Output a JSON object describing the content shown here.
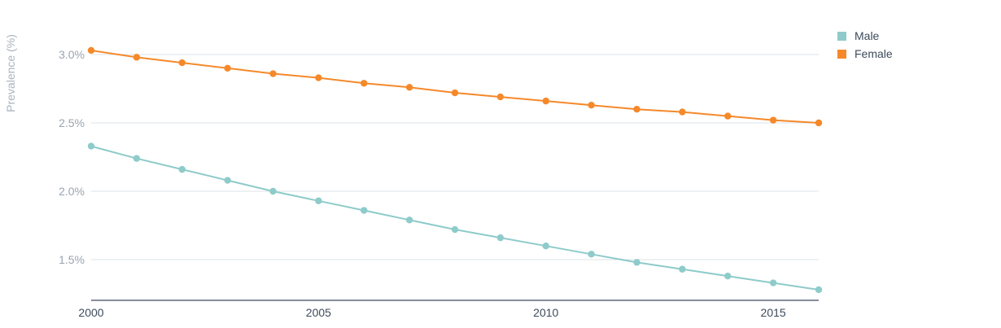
{
  "chart_data": {
    "type": "line",
    "ylabel": "Prevalence (%)",
    "xlabel": "",
    "x": [
      2000,
      2001,
      2002,
      2003,
      2004,
      2005,
      2006,
      2007,
      2008,
      2009,
      2010,
      2011,
      2012,
      2013,
      2014,
      2015,
      2016
    ],
    "xticks": [
      2000,
      2005,
      2010,
      2015
    ],
    "xtick_labels": [
      "2000",
      "2005",
      "2010",
      "2015"
    ],
    "yticks": [
      1.5,
      2.0,
      2.5,
      3.0
    ],
    "ytick_labels": [
      "1.5%",
      "2.0%",
      "2.5%",
      "3.0%"
    ],
    "xlim": [
      2000,
      2016
    ],
    "ylim": [
      1.2,
      3.3
    ],
    "grid": true,
    "legend_position": "top-right",
    "series": [
      {
        "name": "Male",
        "color": "#8ecbca",
        "values": [
          2.33,
          2.24,
          2.16,
          2.08,
          2.0,
          1.93,
          1.86,
          1.79,
          1.72,
          1.66,
          1.6,
          1.54,
          1.48,
          1.43,
          1.38,
          1.33,
          1.28
        ]
      },
      {
        "name": "Female",
        "color": "#f5892a",
        "values": [
          3.03,
          2.98,
          2.94,
          2.9,
          2.86,
          2.83,
          2.79,
          2.76,
          2.72,
          2.69,
          2.66,
          2.63,
          2.6,
          2.58,
          2.55,
          2.52,
          2.5
        ]
      }
    ]
  }
}
